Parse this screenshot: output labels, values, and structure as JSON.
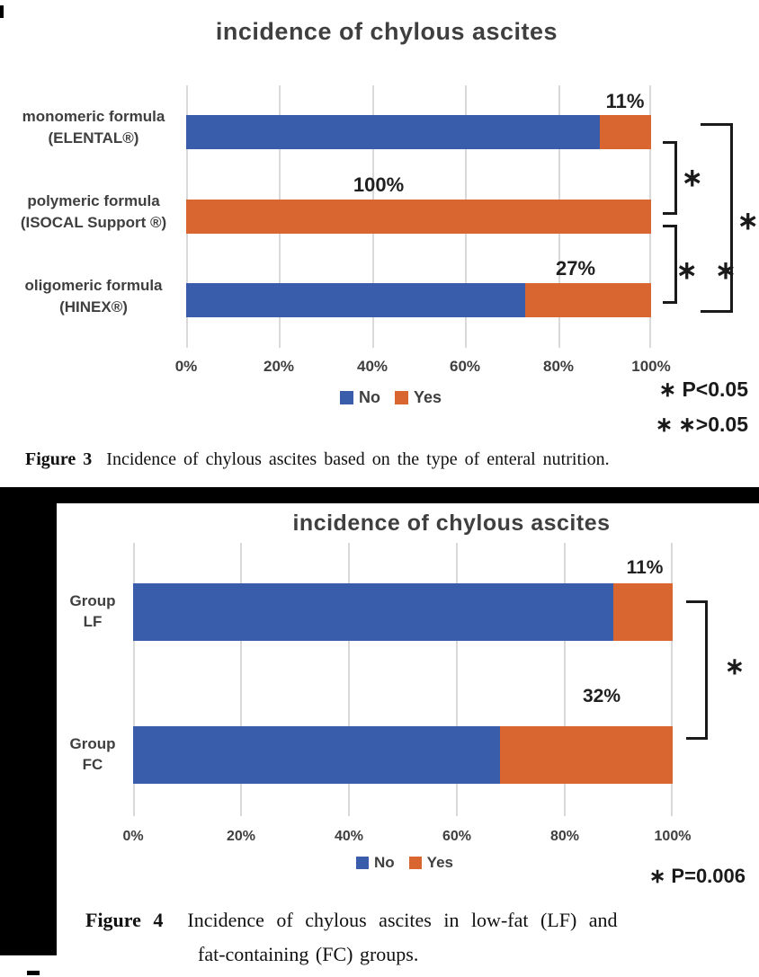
{
  "colors": {
    "no": "#3a5dab",
    "yes": "#d96630",
    "grid": "#d9d9d9",
    "text": "#3f3f3f"
  },
  "chart_data": [
    {
      "type": "bar",
      "orientation": "horizontal",
      "stacked": true,
      "title": "incidence of chylous ascites",
      "categories": [
        "monomeric formula (ELENTAL®)",
        "polymeric formula (ISOCAL Support ®)",
        "oligomeric formula (HINEX®)"
      ],
      "series": [
        {
          "name": "No",
          "color": "#3a5dab",
          "values": [
            89,
            0,
            73
          ]
        },
        {
          "name": "Yes",
          "color": "#d96630",
          "values": [
            11,
            100,
            27
          ]
        }
      ],
      "value_labels": [
        "11%",
        "100%",
        "27%"
      ],
      "x_ticks": [
        "0%",
        "20%",
        "40%",
        "60%",
        "80%",
        "100%"
      ],
      "xlim": [
        0,
        100
      ],
      "grid": true,
      "legend_position": "bottom",
      "annotations": [
        "∗ P<0.05",
        "∗ ∗ >0.05"
      ]
    },
    {
      "type": "bar",
      "orientation": "horizontal",
      "stacked": true,
      "title": "incidence of chylous ascites",
      "categories": [
        "Group LF",
        "Group FC"
      ],
      "series": [
        {
          "name": "No",
          "color": "#3a5dab",
          "values": [
            89,
            68
          ]
        },
        {
          "name": "Yes",
          "color": "#d96630",
          "values": [
            11,
            32
          ]
        }
      ],
      "value_labels": [
        "11%",
        "32%"
      ],
      "x_ticks": [
        "0%",
        "20%",
        "40%",
        "60%",
        "80%",
        "100%"
      ],
      "xlim": [
        0,
        100
      ],
      "grid": true,
      "legend_position": "bottom",
      "annotations": [
        "∗ P=0.006"
      ]
    }
  ],
  "figure3_labels": [
    {
      "l1": "monomeric formula",
      "l2": "(ELENTAL®)"
    },
    {
      "l1": "polymeric formula",
      "l2": "(ISOCAL Support ®)"
    },
    {
      "l1": "oligomeric formula",
      "l2": "(HINEX®)"
    }
  ],
  "figure4_labels": [
    {
      "l1": "Group",
      "l2": "LF"
    },
    {
      "l1": "Group",
      "l2": "FC"
    }
  ],
  "significance": {
    "single_marker": "∗",
    "double_marker": "∗ ∗",
    "fig3_line1_marker": "∗",
    "fig3_line1_text": "P<0.05",
    "fig3_line2_marker": "∗ ∗",
    "fig3_line2_text": ">0.05",
    "fig4_marker": "∗",
    "fig4_text": "P=0.006"
  },
  "captions": {
    "fig3_label": "Figure 3",
    "fig3_text": "Incidence of chylous ascites based on the type of enteral nutrition.",
    "fig4_label": "Figure 4",
    "fig4_line1": "Incidence of chylous ascites in low-fat (LF) and",
    "fig4_line2": "fat-containing (FC) groups."
  }
}
